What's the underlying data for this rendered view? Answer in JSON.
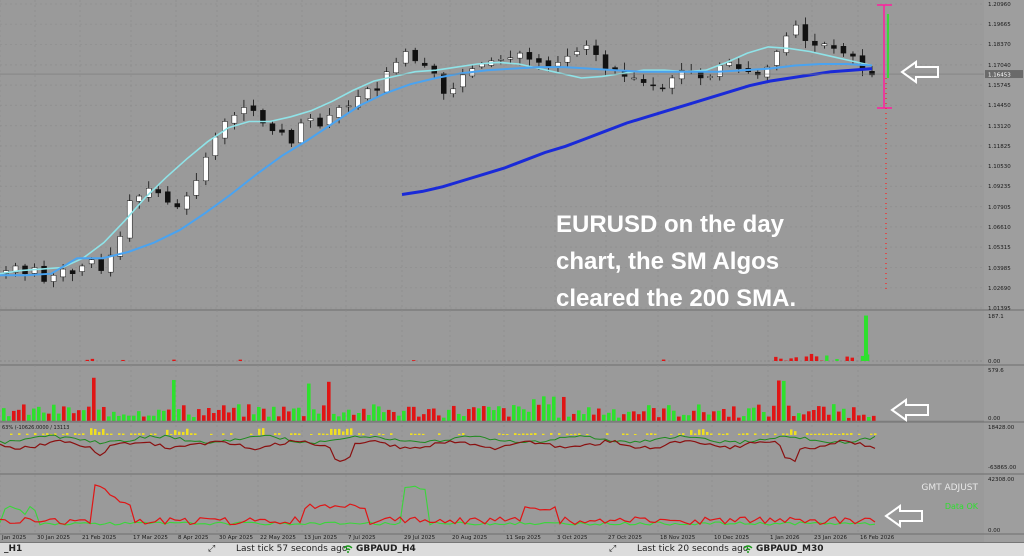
{
  "overlay_text": {
    "line1": "EURUSD on the day",
    "line2": "chart, the SM Algos",
    "line3": "cleared the 200 SMA."
  },
  "chart_data": [
    {
      "type": "line",
      "panel": "price",
      "x_tick_labels": [
        "Jan 2025",
        "30 Jan 2025",
        "21 Feb 2025",
        "17 Mar 2025",
        "8 Apr 2025",
        "30 Apr 2025",
        "22 May 2025",
        "13 Jun 2025",
        "7 Jul 2025",
        "29 Jul 2025",
        "20 Aug 2025",
        "11 Sep 2025",
        "3 Oct 2025",
        "27 Oct 2025",
        "18 Nov 2025",
        "10 Dec 2025",
        "1 Jan 2026",
        "23 Jan 2026",
        "16 Feb 2026"
      ],
      "y_tick_labels": [
        "1.20960",
        "1.19665",
        "1.18370",
        "1.17040",
        "1.15745",
        "1.14450",
        "1.13120",
        "1.11825",
        "1.10530",
        "1.09235",
        "1.07905",
        "1.06610",
        "1.05315",
        "1.03985",
        "1.02690",
        "1.01395"
      ],
      "ylim": [
        1.01395,
        1.2096
      ],
      "current_price_label": "1.16453",
      "current_price": 1.16453,
      "series": [
        {
          "color": "#ffffff",
          "style": "candles",
          "values": [
            1.038,
            1.041,
            1.036,
            1.04,
            1.031,
            1.035,
            1.039,
            1.036,
            1.041,
            1.045,
            1.038,
            1.048,
            1.06,
            1.083,
            1.086,
            1.091,
            1.088,
            1.082,
            1.079,
            1.086,
            1.096,
            1.111,
            1.124,
            1.134,
            1.138,
            1.143,
            1.141,
            1.133,
            1.128,
            1.127,
            1.12,
            1.133,
            1.136,
            1.131,
            1.138,
            1.143,
            1.144,
            1.15,
            1.155,
            1.154,
            1.166,
            1.172,
            1.179,
            1.173,
            1.17,
            1.165,
            1.152,
            1.155,
            1.164,
            1.168,
            1.171,
            1.173,
            1.174,
            1.175,
            1.178,
            1.174,
            1.172,
            1.169,
            1.172,
            1.176,
            1.179,
            1.183,
            1.177,
            1.168,
            1.167,
            1.163,
            1.162,
            1.159,
            1.157,
            1.155,
            1.162,
            1.167,
            1.166,
            1.162,
            1.163,
            1.17,
            1.172,
            1.168,
            1.166,
            1.164,
            1.169,
            1.179,
            1.189,
            1.196,
            1.186,
            1.183,
            1.184,
            1.181,
            1.178,
            1.176,
            1.167,
            1.164
          ]
        },
        {
          "color": "#8fe3e8",
          "style": "line",
          "values": [
            1.036,
            1.038,
            1.039,
            1.04,
            1.046,
            1.056,
            1.07,
            1.085,
            1.098,
            1.11,
            1.121,
            1.13,
            1.134,
            1.134,
            1.137,
            1.141,
            1.147,
            1.154,
            1.16,
            1.163,
            1.166,
            1.167,
            1.169,
            1.171,
            1.172,
            1.171,
            1.168,
            1.165,
            1.162,
            1.163,
            1.165,
            1.167,
            1.167,
            1.166,
            1.167,
            1.172,
            1.178,
            1.182,
            1.181,
            1.179,
            1.176,
            1.173,
            1.17
          ]
        },
        {
          "color": "#4aa3f0",
          "style": "line",
          "values": [
            1.035,
            1.035,
            1.036,
            1.046,
            1.046,
            1.05,
            1.056,
            1.064,
            1.075,
            1.087,
            1.1,
            1.112,
            1.122,
            1.133,
            1.144,
            1.152,
            1.158,
            1.162,
            1.165,
            1.167,
            1.168,
            1.169,
            1.169,
            1.168,
            1.167,
            1.166,
            1.166,
            1.166,
            1.166,
            1.167,
            1.168,
            1.17,
            1.171,
            1.171,
            1.17
          ]
        },
        {
          "color": "#1a2ad8",
          "style": "line",
          "values": [
            1.087,
            1.089,
            1.092,
            1.096,
            1.1,
            1.104,
            1.109,
            1.114,
            1.118,
            1.123,
            1.128,
            1.133,
            1.137,
            1.141,
            1.145,
            1.149,
            1.153,
            1.157,
            1.16,
            1.162,
            1.164,
            1.166,
            1.167,
            1.168
          ]
        }
      ]
    },
    {
      "type": "bar",
      "panel": "volume",
      "y_tick_labels": [
        "187.1",
        "0.00"
      ],
      "ylim": [
        0,
        187.1
      ]
    },
    {
      "type": "bar",
      "panel": "momentum",
      "y_tick_labels": [
        "579.6",
        "0.00"
      ]
    },
    {
      "type": "line",
      "panel": "oscillator",
      "y_tick_labels": [
        "18428.00",
        "-63865.00"
      ],
      "left_label": "63%  (-10626.0000 / 13113"
    },
    {
      "type": "line",
      "panel": "lower",
      "y_tick_labels": [
        "42308.00",
        "0.00"
      ],
      "annotations": [
        "GMT ADJUST",
        "Data OK"
      ]
    }
  ],
  "status_bar": {
    "left_symbol": "_H1",
    "tick1": "Last tick 57 seconds ago",
    "symbol1": "GBPAUD_H4",
    "tick2": "Last tick 20 seconds ago",
    "symbol2": "GBPAUD_M30"
  }
}
